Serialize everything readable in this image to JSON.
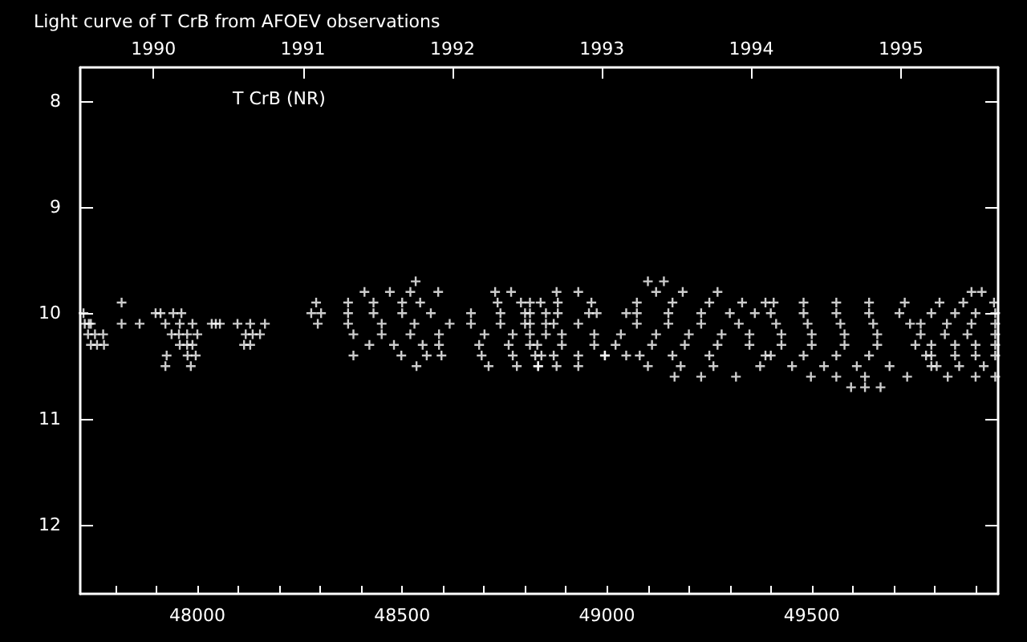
{
  "chart_data": {
    "type": "scatter",
    "title": "Light curve of T CrB from AFOEV observations",
    "annotations": [
      "T CrB (NR)"
    ],
    "xlim": [
      47714,
      49955
    ],
    "xticks": [
      {
        "value": 47800,
        "label": null
      },
      {
        "value": 47900,
        "label": null
      },
      48000,
      {
        "value": 48100,
        "label": null
      },
      {
        "value": 48200,
        "label": null
      },
      {
        "value": 48300,
        "label": null
      },
      {
        "value": 48400,
        "label": null
      },
      48500,
      {
        "value": 48600,
        "label": null
      },
      {
        "value": 48700,
        "label": null
      },
      {
        "value": 48800,
        "label": null
      },
      {
        "value": 48900,
        "label": null
      },
      49000,
      {
        "value": 49100,
        "label": null
      },
      {
        "value": 49200,
        "label": null
      },
      {
        "value": 49300,
        "label": null
      },
      {
        "value": 49400,
        "label": null
      },
      49500,
      {
        "value": 49600,
        "label": null
      },
      {
        "value": 49700,
        "label": null
      },
      {
        "value": 49800,
        "label": null
      },
      {
        "value": 49900,
        "label": null
      }
    ],
    "x2lim": [
      1989.51,
      1995.65
    ],
    "x2ticks": [
      1990,
      1991,
      1992,
      1993,
      1994,
      1995
    ],
    "ylim": [
      12.65,
      7.68
    ],
    "yticks": [
      8,
      9,
      10,
      11,
      12
    ],
    "marker": "cross",
    "series": [
      {
        "color": "#ffffff",
        "x": [
          47722,
          47725,
          47735,
          47740,
          47733,
          47750,
          47770,
          47740,
          47755,
          47772,
          47815,
          47898,
          47910,
          47941,
          47961,
          47815,
          47859,
          47922,
          47957,
          47988,
          48035,
          48045,
          48055,
          47937,
          47955,
          47975,
          48000,
          47957,
          47975,
          47988,
          47925,
          47976,
          47996,
          47922,
          47984,
          48098,
          48129,
          48165,
          48118,
          48135,
          48153,
          48114,
          48129,
          48290,
          48278,
          48302,
          48294,
          48533,
          48408,
          48470,
          48520,
          48588,
          48368,
          48430,
          48500,
          48544,
          48368,
          48430,
          48500,
          48570,
          48368,
          48450,
          48530,
          48616,
          48381,
          48450,
          48520,
          48590,
          48420,
          48480,
          48550,
          48590,
          48381,
          48498,
          48560,
          48596,
          48535,
          48727,
          48766,
          48733,
          48790,
          48838,
          48668,
          48740,
          48800,
          48851,
          48668,
          48740,
          48800,
          48851,
          48701,
          48770,
          48851,
          48688,
          48760,
          48830,
          48694,
          48770,
          48840,
          48711,
          48780,
          48832,
          48877,
          48930,
          48812,
          48880,
          48962,
          48812,
          48880,
          48956,
          48975,
          49047,
          48812,
          48870,
          48930,
          48812,
          48890,
          48969,
          48812,
          48890,
          48969,
          48825,
          48870,
          48930,
          48995,
          49047,
          48832,
          48877,
          48930,
          49100,
          49139,
          49120,
          49185,
          49270,
          49073,
          49160,
          49250,
          49330,
          49387,
          49073,
          49150,
          49230,
          49300,
          49361,
          49073,
          49150,
          49230,
          49322,
          49034,
          49120,
          49200,
          49280,
          49348,
          49021,
          49110,
          49190,
          49270,
          49348,
          48995,
          49080,
          49160,
          49250,
          49387,
          49100,
          49180,
          49260,
          49374,
          49165,
          49230,
          49315,
          49407,
          49480,
          49560,
          49640,
          49727,
          49400,
          49480,
          49560,
          49640,
          49714,
          49413,
          49490,
          49570,
          49650,
          49740,
          49426,
          49500,
          49580,
          49660,
          49766,
          49426,
          49500,
          49580,
          49660,
          49753,
          49400,
          49480,
          49560,
          49640,
          49779,
          49452,
          49530,
          49610,
          49690,
          49792,
          49498,
          49560,
          49630,
          49733,
          49596,
          49630,
          49668,
          49890,
          49915,
          49812,
          49870,
          49945,
          49792,
          49850,
          49900,
          49948,
          49766,
          49830,
          49890,
          49948,
          49825,
          49880,
          49948,
          49792,
          49850,
          49900,
          49948,
          49792,
          49850,
          49900,
          49948,
          49805,
          49860,
          49920,
          49832,
          49900,
          49948
        ],
        "values": [
          10.0,
          10.1,
          10.1,
          10.1,
          10.2,
          10.2,
          10.2,
          10.3,
          10.3,
          10.3,
          9.9,
          10.0,
          10.0,
          10.0,
          10.0,
          10.1,
          10.1,
          10.1,
          10.1,
          10.1,
          10.1,
          10.1,
          10.1,
          10.2,
          10.2,
          10.2,
          10.2,
          10.3,
          10.3,
          10.3,
          10.4,
          10.4,
          10.4,
          10.5,
          10.5,
          10.1,
          10.1,
          10.1,
          10.2,
          10.2,
          10.2,
          10.3,
          10.3,
          9.9,
          10.0,
          10.0,
          10.1,
          9.7,
          9.8,
          9.8,
          9.8,
          9.8,
          9.9,
          9.9,
          9.9,
          9.9,
          10.0,
          10.0,
          10.0,
          10.0,
          10.1,
          10.1,
          10.1,
          10.1,
          10.2,
          10.2,
          10.2,
          10.2,
          10.3,
          10.3,
          10.3,
          10.3,
          10.4,
          10.4,
          10.4,
          10.4,
          10.5,
          9.8,
          9.8,
          9.9,
          9.9,
          9.9,
          10.0,
          10.0,
          10.0,
          10.0,
          10.1,
          10.1,
          10.1,
          10.1,
          10.2,
          10.2,
          10.2,
          10.3,
          10.3,
          10.3,
          10.4,
          10.4,
          10.4,
          10.5,
          10.5,
          10.5,
          9.8,
          9.8,
          9.9,
          9.9,
          9.9,
          10.0,
          10.0,
          10.0,
          10.0,
          10.0,
          10.1,
          10.1,
          10.1,
          10.2,
          10.2,
          10.2,
          10.3,
          10.3,
          10.3,
          10.4,
          10.4,
          10.4,
          10.4,
          10.4,
          10.5,
          10.5,
          10.5,
          9.7,
          9.7,
          9.8,
          9.8,
          9.8,
          9.9,
          9.9,
          9.9,
          9.9,
          9.9,
          10.0,
          10.0,
          10.0,
          10.0,
          10.0,
          10.1,
          10.1,
          10.1,
          10.1,
          10.2,
          10.2,
          10.2,
          10.2,
          10.2,
          10.3,
          10.3,
          10.3,
          10.3,
          10.3,
          10.4,
          10.4,
          10.4,
          10.4,
          10.4,
          10.5,
          10.5,
          10.5,
          10.5,
          10.6,
          10.6,
          10.6,
          9.9,
          9.9,
          9.9,
          9.9,
          9.9,
          10.0,
          10.0,
          10.0,
          10.0,
          10.0,
          10.1,
          10.1,
          10.1,
          10.1,
          10.1,
          10.2,
          10.2,
          10.2,
          10.2,
          10.2,
          10.3,
          10.3,
          10.3,
          10.3,
          10.3,
          10.4,
          10.4,
          10.4,
          10.4,
          10.4,
          10.5,
          10.5,
          10.5,
          10.5,
          10.5,
          10.6,
          10.6,
          10.6,
          10.6,
          10.7,
          10.7,
          10.7,
          9.8,
          9.8,
          9.9,
          9.9,
          9.9,
          10.0,
          10.0,
          10.0,
          10.0,
          10.1,
          10.1,
          10.1,
          10.1,
          10.2,
          10.2,
          10.2,
          10.3,
          10.3,
          10.3,
          10.3,
          10.4,
          10.4,
          10.4,
          10.4,
          10.5,
          10.5,
          10.5,
          10.6,
          10.6,
          10.6
        ]
      }
    ]
  }
}
